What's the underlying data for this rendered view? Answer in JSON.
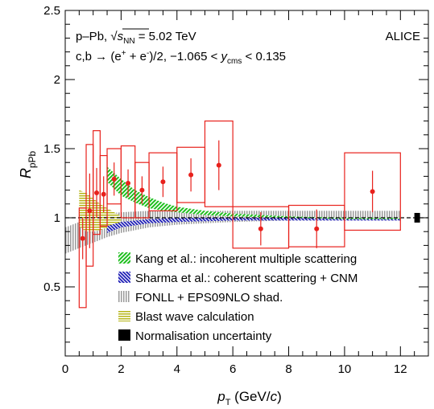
{
  "chart_data": {
    "type": "scatter",
    "title_lines": [
      {
        "prefix": "p–Pb, ",
        "sqrt": "s",
        "sub": "NN",
        "suffix": " = 5.02 TeV"
      },
      {
        "pre": "c,b → (e",
        "sup1": "+",
        "mid": " + e",
        "sup2": "-",
        "post": ")/2, −1.065 < ",
        "y": "y",
        "ysub": "cms",
        "tail": " < 0.135"
      }
    ],
    "experiment_label": "ALICE",
    "xlabel": {
      "main": "p",
      "sub": "T",
      "unit_pre": " (GeV/",
      "unit_c": "c",
      "unit_post": ")"
    },
    "ylabel": {
      "main": "R",
      "sub": "pPb"
    },
    "xlim": [
      0,
      13
    ],
    "ylim": [
      0,
      2.5
    ],
    "xticks": [
      "0",
      "2",
      "4",
      "6",
      "8",
      "10",
      "12"
    ],
    "yticks": [
      "0.5",
      "1",
      "1.5",
      "2",
      "2.5"
    ],
    "reference_line": 1,
    "points": [
      {
        "x": 0.625,
        "y": 0.85,
        "err": 0.15,
        "syslo": 0.5,
        "syshi": 0.22,
        "xlo": 0.5,
        "xhi": 0.75
      },
      {
        "x": 0.875,
        "y": 1.05,
        "err": 0.27,
        "syslo": 0.4,
        "syshi": 0.48,
        "xlo": 0.75,
        "xhi": 1.0
      },
      {
        "x": 1.125,
        "y": 1.18,
        "err": 0.18,
        "syslo": 0.3,
        "syshi": 0.45,
        "xlo": 1.0,
        "xhi": 1.25
      },
      {
        "x": 1.375,
        "y": 1.17,
        "err": 0.13,
        "syslo": 0.23,
        "syshi": 0.28,
        "xlo": 1.25,
        "xhi": 1.5
      },
      {
        "x": 1.75,
        "y": 1.28,
        "err": 0.12,
        "syslo": 0.18,
        "syshi": 0.22,
        "xlo": 1.5,
        "xhi": 2.0
      },
      {
        "x": 2.25,
        "y": 1.25,
        "err": 0.1,
        "syslo": 0.25,
        "syshi": 0.27,
        "xlo": 2.0,
        "xhi": 2.5
      },
      {
        "x": 2.75,
        "y": 1.2,
        "err": 0.1,
        "syslo": 0.2,
        "syshi": 0.2,
        "xlo": 2.5,
        "xhi": 3.0
      },
      {
        "x": 3.5,
        "y": 1.26,
        "err": 0.11,
        "syslo": 0.21,
        "syshi": 0.21,
        "xlo": 3.0,
        "xhi": 4.0
      },
      {
        "x": 4.5,
        "y": 1.31,
        "err": 0.12,
        "syslo": 0.2,
        "syshi": 0.2,
        "xlo": 4.0,
        "xhi": 5.0
      },
      {
        "x": 5.5,
        "y": 1.38,
        "err": 0.18,
        "syslo": 0.3,
        "syshi": 0.32,
        "xlo": 5.0,
        "xhi": 6.0
      },
      {
        "x": 7.0,
        "y": 0.92,
        "err": 0.12,
        "syslo": 0.14,
        "syshi": 0.16,
        "xlo": 6.0,
        "xhi": 8.0
      },
      {
        "x": 9.0,
        "y": 0.92,
        "err": 0.14,
        "syslo": 0.13,
        "syshi": 0.17,
        "xlo": 8.0,
        "xhi": 10.0
      },
      {
        "x": 11.0,
        "y": 1.19,
        "err": 0.15,
        "syslo": 0.28,
        "syshi": 0.28,
        "xlo": 10.0,
        "xhi": 12.0
      }
    ],
    "models": {
      "kang": {
        "x": [
          1.5,
          2.0,
          2.5,
          3.0,
          3.5,
          4.0,
          5.0,
          6.0,
          8.0,
          10.0,
          12.0
        ],
        "lo": [
          1.26,
          1.16,
          1.11,
          1.07,
          1.05,
          1.04,
          1.02,
          1.01,
          1.0,
          0.99,
          0.99
        ],
        "hi": [
          1.37,
          1.28,
          1.2,
          1.15,
          1.11,
          1.08,
          1.05,
          1.03,
          1.01,
          1.0,
          1.0
        ]
      },
      "sharma": {
        "x": [
          1.5,
          2.0,
          3.0,
          4.0,
          6.0,
          8.0,
          10.0,
          12.0
        ],
        "lo": [
          0.89,
          0.93,
          0.96,
          0.97,
          0.98,
          0.98,
          0.98,
          0.98
        ],
        "hi": [
          0.94,
          0.97,
          0.99,
          1.0,
          1.0,
          1.0,
          1.0,
          1.0
        ]
      },
      "fonll": {
        "x": [
          0.0,
          0.5,
          1.0,
          1.5,
          2.0,
          3.0,
          4.0,
          6.0,
          8.0,
          10.0,
          12.0
        ],
        "lo": [
          0.74,
          0.78,
          0.82,
          0.86,
          0.89,
          0.93,
          0.95,
          0.97,
          0.98,
          0.98,
          0.98
        ],
        "hi": [
          0.93,
          0.97,
          1.01,
          1.03,
          1.04,
          1.05,
          1.05,
          1.05,
          1.05,
          1.05,
          1.05
        ]
      },
      "blast": {
        "x": [
          0.5,
          0.75,
          1.0,
          1.25,
          1.5,
          1.75,
          2.0
        ],
        "lo": [
          0.94,
          0.9,
          0.9,
          0.91,
          0.93,
          0.95,
          0.97
        ],
        "hi": [
          1.2,
          1.18,
          1.14,
          1.1,
          1.07,
          1.04,
          1.01
        ]
      }
    },
    "normalisation_box": {
      "x": 12.6,
      "lo": 0.965,
      "hi": 1.035
    },
    "legend_position": "bottom-center",
    "legend": [
      {
        "key": "kang",
        "label": "Kang et al.: incoherent multiple scattering"
      },
      {
        "key": "sharma",
        "label": "Sharma et al.: coherent scattering + CNM"
      },
      {
        "key": "fonll",
        "label": "FONLL + EPS09NLO shad."
      },
      {
        "key": "blast",
        "label": "Blast wave calculation"
      },
      {
        "key": "norm",
        "label": "Normalisation uncertainty"
      }
    ],
    "colors": {
      "data": "#e8211c",
      "kang": "#1fbf1f",
      "sharma": "#1a1ab4",
      "fonll": "#9a9a9a",
      "blast": "#b5b517",
      "norm": "#000000",
      "refline": "#000000"
    }
  }
}
